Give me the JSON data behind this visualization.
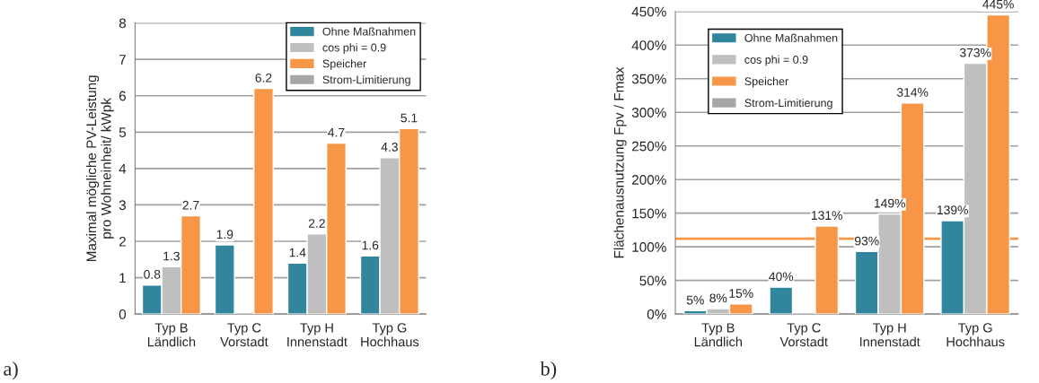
{
  "chart_data": [
    {
      "type": "bar",
      "ylabel": "Maximal mögliche PV-Leistung\npro Wohneinheit/ kWpk",
      "categories": [
        "Typ B\nLändlich",
        "Typ C\nVorstadt",
        "Typ H\nInnenstadt",
        "Typ G\nHochhaus"
      ],
      "series": [
        {
          "name": "Ohne Maßnahmen",
          "color": "#31859c",
          "values": [
            0.8,
            1.9,
            1.4,
            1.6
          ]
        },
        {
          "name": "cos phi = 0.9",
          "color": "#bfbfbf",
          "values": [
            1.3,
            null,
            2.2,
            4.3
          ]
        },
        {
          "name": "Speicher",
          "color": "#f79646",
          "values": [
            2.7,
            6.2,
            4.7,
            5.1
          ]
        },
        {
          "name": "Strom-Limitierung",
          "color": "#a6a6a6",
          "values": [
            null,
            null,
            null,
            null
          ]
        }
      ],
      "ylim": [
        0,
        8
      ],
      "yticks": [
        0,
        1,
        2,
        3,
        4,
        5,
        6,
        7,
        8
      ],
      "grid": "y",
      "legend": "top right",
      "data_labels": true,
      "annotations": [
        "a)"
      ]
    },
    {
      "type": "bar",
      "ylabel": "Flächenausnutzung Fpv / Fmax",
      "categories": [
        "Typ B\nLändlich",
        "Typ C\nVorstadt",
        "Typ H\nInnenstadt",
        "Typ G\nHochhaus"
      ],
      "series": [
        {
          "name": "Ohne Maßnahmen",
          "color": "#31859c",
          "values": [
            5,
            40,
            93,
            139
          ],
          "value_labels": [
            "5%",
            "40%",
            "93%",
            "139%"
          ]
        },
        {
          "name": "cos phi = 0.9",
          "color": "#bfbfbf",
          "values": [
            8,
            null,
            149,
            373
          ],
          "value_labels": [
            "8%",
            null,
            "149%",
            "373%"
          ]
        },
        {
          "name": "Speicher",
          "color": "#f79646",
          "values": [
            15,
            131,
            314,
            445
          ],
          "value_labels": [
            "15%",
            "131%",
            "314%",
            "445%"
          ]
        },
        {
          "name": "Strom-Limitierung",
          "color": "#a6a6a6",
          "values": [
            null,
            null,
            null,
            null
          ]
        }
      ],
      "ylim": [
        0,
        450
      ],
      "yticks": [
        {
          "value": 0,
          "label": "0%"
        },
        {
          "value": 50,
          "label": "50%"
        },
        {
          "value": 100,
          "label": "100%"
        },
        {
          "value": 150,
          "label": "150%"
        },
        {
          "value": 200,
          "label": "200%"
        },
        {
          "value": 250,
          "label": "250%"
        },
        {
          "value": 300,
          "label": "300%"
        },
        {
          "value": 350,
          "label": "350%"
        },
        {
          "value": 400,
          "label": "400%"
        },
        {
          "value": 450,
          "label": "450%"
        }
      ],
      "ref_lines": [
        {
          "axis": "y",
          "value": 112,
          "color": "#f79646"
        }
      ],
      "grid": "y",
      "legend": "top left",
      "annotations": [
        "b)"
      ]
    }
  ]
}
